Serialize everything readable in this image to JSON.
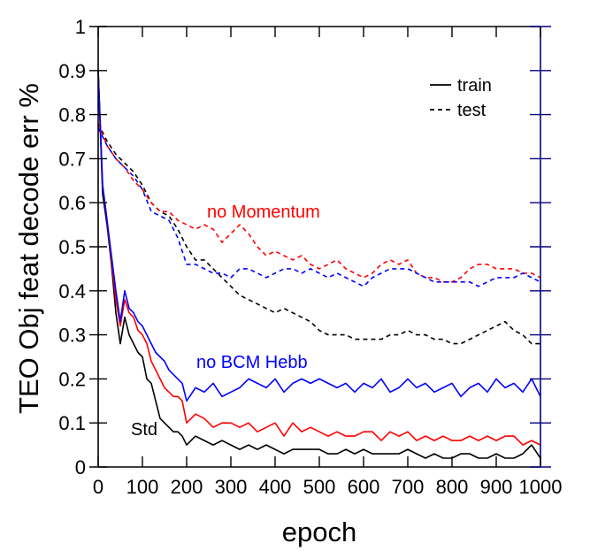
{
  "chart_data": {
    "type": "line",
    "xlabel": "epoch",
    "ylabel": "TEO Obj feat decode err %",
    "xlim": [
      0,
      1000
    ],
    "ylim": [
      0,
      1
    ],
    "xticks": [
      "0",
      "100",
      "200",
      "300",
      "400",
      "500",
      "600",
      "700",
      "800",
      "900",
      "1000"
    ],
    "yticks": [
      "0",
      "0.1",
      "0.2",
      "0.3",
      "0.4",
      "0.5",
      "0.6",
      "0.7",
      "0.8",
      "0.9",
      "1"
    ],
    "grid": false,
    "legend": {
      "position": "top-right",
      "entries": [
        {
          "label": "train",
          "style": "solid"
        },
        {
          "label": "test",
          "style": "dashed"
        }
      ]
    },
    "annotations": [
      {
        "text": "no Momentum",
        "color": "#ff0000"
      },
      {
        "text": "no BCM Hebb",
        "color": "#0000ff"
      },
      {
        "text": "Std",
        "color": "#000000"
      }
    ],
    "colors": {
      "std": "#000000",
      "no_momentum": "#ff0000",
      "no_bcm_hebb": "#0000ff"
    },
    "series": [
      {
        "key": "std_train",
        "color": "#000000",
        "style": "solid",
        "x": [
          0,
          10,
          20,
          30,
          40,
          50,
          60,
          70,
          80,
          90,
          100,
          110,
          120,
          130,
          140,
          150,
          160,
          170,
          180,
          190,
          200,
          220,
          240,
          260,
          280,
          300,
          320,
          340,
          360,
          380,
          400,
          420,
          440,
          460,
          480,
          500,
          520,
          540,
          560,
          580,
          600,
          620,
          640,
          660,
          680,
          700,
          720,
          740,
          760,
          780,
          800,
          820,
          840,
          860,
          880,
          900,
          920,
          940,
          960,
          980,
          1000
        ],
        "y": [
          0.9,
          0.62,
          0.55,
          0.46,
          0.35,
          0.28,
          0.34,
          0.3,
          0.28,
          0.26,
          0.25,
          0.2,
          0.19,
          0.15,
          0.11,
          0.1,
          0.09,
          0.08,
          0.08,
          0.07,
          0.05,
          0.07,
          0.06,
          0.05,
          0.06,
          0.05,
          0.04,
          0.05,
          0.04,
          0.05,
          0.04,
          0.03,
          0.04,
          0.04,
          0.04,
          0.04,
          0.03,
          0.03,
          0.04,
          0.03,
          0.04,
          0.03,
          0.03,
          0.03,
          0.03,
          0.04,
          0.03,
          0.02,
          0.03,
          0.02,
          0.02,
          0.03,
          0.03,
          0.02,
          0.02,
          0.03,
          0.02,
          0.02,
          0.03,
          0.05,
          0.02
        ]
      },
      {
        "key": "std_test",
        "color": "#000000",
        "style": "dashed",
        "x": [
          0,
          20,
          40,
          60,
          80,
          100,
          120,
          140,
          160,
          180,
          200,
          220,
          240,
          260,
          280,
          300,
          320,
          340,
          360,
          380,
          400,
          420,
          440,
          460,
          480,
          500,
          520,
          540,
          560,
          580,
          600,
          620,
          640,
          660,
          680,
          700,
          720,
          740,
          760,
          780,
          800,
          820,
          840,
          860,
          880,
          900,
          920,
          940,
          960,
          980,
          1000
        ],
        "y": [
          0.78,
          0.74,
          0.71,
          0.69,
          0.67,
          0.64,
          0.6,
          0.58,
          0.57,
          0.54,
          0.5,
          0.47,
          0.47,
          0.45,
          0.43,
          0.41,
          0.39,
          0.38,
          0.37,
          0.36,
          0.35,
          0.36,
          0.35,
          0.34,
          0.33,
          0.31,
          0.3,
          0.3,
          0.3,
          0.29,
          0.29,
          0.29,
          0.29,
          0.3,
          0.3,
          0.31,
          0.3,
          0.3,
          0.29,
          0.29,
          0.28,
          0.28,
          0.29,
          0.3,
          0.31,
          0.32,
          0.33,
          0.31,
          0.3,
          0.28,
          0.28
        ]
      },
      {
        "key": "no_momentum_train",
        "color": "#ff0000",
        "style": "solid",
        "x": [
          0,
          10,
          20,
          30,
          40,
          50,
          60,
          70,
          80,
          90,
          100,
          110,
          120,
          130,
          140,
          150,
          160,
          170,
          180,
          190,
          200,
          220,
          240,
          260,
          280,
          300,
          320,
          340,
          360,
          380,
          400,
          420,
          440,
          460,
          480,
          500,
          520,
          540,
          560,
          580,
          600,
          620,
          640,
          660,
          680,
          700,
          720,
          740,
          760,
          780,
          800,
          820,
          840,
          860,
          880,
          900,
          920,
          940,
          960,
          980,
          1000
        ],
        "y": [
          0.9,
          0.64,
          0.56,
          0.47,
          0.38,
          0.32,
          0.38,
          0.35,
          0.34,
          0.31,
          0.3,
          0.28,
          0.24,
          0.22,
          0.2,
          0.18,
          0.17,
          0.16,
          0.16,
          0.15,
          0.1,
          0.12,
          0.11,
          0.09,
          0.1,
          0.1,
          0.09,
          0.1,
          0.08,
          0.09,
          0.1,
          0.07,
          0.1,
          0.08,
          0.09,
          0.08,
          0.07,
          0.08,
          0.07,
          0.07,
          0.08,
          0.08,
          0.06,
          0.08,
          0.07,
          0.08,
          0.06,
          0.07,
          0.06,
          0.07,
          0.06,
          0.06,
          0.07,
          0.06,
          0.07,
          0.06,
          0.07,
          0.07,
          0.05,
          0.06,
          0.05
        ]
      },
      {
        "key": "no_momentum_test",
        "color": "#ff0000",
        "style": "dashed",
        "x": [
          0,
          20,
          40,
          60,
          80,
          100,
          120,
          140,
          160,
          180,
          200,
          220,
          240,
          260,
          280,
          300,
          320,
          340,
          360,
          380,
          400,
          420,
          440,
          460,
          480,
          500,
          520,
          540,
          560,
          580,
          600,
          620,
          640,
          660,
          680,
          700,
          720,
          740,
          760,
          780,
          800,
          820,
          840,
          860,
          880,
          900,
          920,
          940,
          960,
          980,
          1000
        ],
        "y": [
          0.78,
          0.73,
          0.7,
          0.68,
          0.65,
          0.63,
          0.6,
          0.58,
          0.58,
          0.56,
          0.55,
          0.54,
          0.55,
          0.54,
          0.51,
          0.53,
          0.55,
          0.53,
          0.5,
          0.48,
          0.49,
          0.48,
          0.47,
          0.48,
          0.46,
          0.45,
          0.46,
          0.47,
          0.45,
          0.44,
          0.43,
          0.44,
          0.46,
          0.47,
          0.46,
          0.47,
          0.44,
          0.43,
          0.43,
          0.42,
          0.42,
          0.43,
          0.45,
          0.46,
          0.46,
          0.45,
          0.45,
          0.45,
          0.44,
          0.44,
          0.43
        ]
      },
      {
        "key": "no_bcm_hebb_train",
        "color": "#0000ff",
        "style": "solid",
        "x": [
          0,
          10,
          20,
          30,
          40,
          50,
          60,
          70,
          80,
          90,
          100,
          110,
          120,
          130,
          140,
          150,
          160,
          170,
          180,
          190,
          200,
          220,
          240,
          260,
          280,
          300,
          320,
          340,
          360,
          380,
          400,
          420,
          440,
          460,
          480,
          500,
          520,
          540,
          560,
          580,
          600,
          620,
          640,
          660,
          680,
          700,
          720,
          740,
          760,
          780,
          800,
          820,
          840,
          860,
          880,
          900,
          920,
          940,
          960,
          980,
          1000
        ],
        "y": [
          0.9,
          0.64,
          0.56,
          0.48,
          0.4,
          0.33,
          0.4,
          0.36,
          0.35,
          0.33,
          0.32,
          0.3,
          0.28,
          0.26,
          0.25,
          0.24,
          0.22,
          0.21,
          0.2,
          0.19,
          0.15,
          0.18,
          0.17,
          0.19,
          0.16,
          0.17,
          0.18,
          0.2,
          0.19,
          0.18,
          0.2,
          0.17,
          0.19,
          0.2,
          0.19,
          0.2,
          0.19,
          0.18,
          0.19,
          0.17,
          0.19,
          0.18,
          0.2,
          0.17,
          0.18,
          0.2,
          0.18,
          0.19,
          0.17,
          0.18,
          0.19,
          0.16,
          0.18,
          0.19,
          0.17,
          0.2,
          0.18,
          0.19,
          0.17,
          0.2,
          0.16
        ]
      },
      {
        "key": "no_bcm_hebb_test",
        "color": "#0000ff",
        "style": "dashed",
        "x": [
          0,
          20,
          40,
          60,
          80,
          100,
          120,
          140,
          160,
          180,
          200,
          220,
          240,
          260,
          280,
          300,
          320,
          340,
          360,
          380,
          400,
          420,
          440,
          460,
          480,
          500,
          520,
          540,
          560,
          580,
          600,
          620,
          640,
          660,
          680,
          700,
          720,
          740,
          760,
          780,
          800,
          820,
          840,
          860,
          880,
          900,
          920,
          940,
          960,
          980,
          1000
        ],
        "y": [
          0.77,
          0.73,
          0.7,
          0.68,
          0.66,
          0.63,
          0.58,
          0.57,
          0.56,
          0.52,
          0.46,
          0.46,
          0.45,
          0.44,
          0.44,
          0.43,
          0.45,
          0.45,
          0.44,
          0.43,
          0.44,
          0.45,
          0.45,
          0.44,
          0.45,
          0.44,
          0.43,
          0.44,
          0.43,
          0.42,
          0.41,
          0.43,
          0.44,
          0.45,
          0.45,
          0.45,
          0.44,
          0.43,
          0.42,
          0.42,
          0.42,
          0.42,
          0.42,
          0.41,
          0.42,
          0.43,
          0.43,
          0.43,
          0.44,
          0.43,
          0.42
        ]
      }
    ]
  }
}
